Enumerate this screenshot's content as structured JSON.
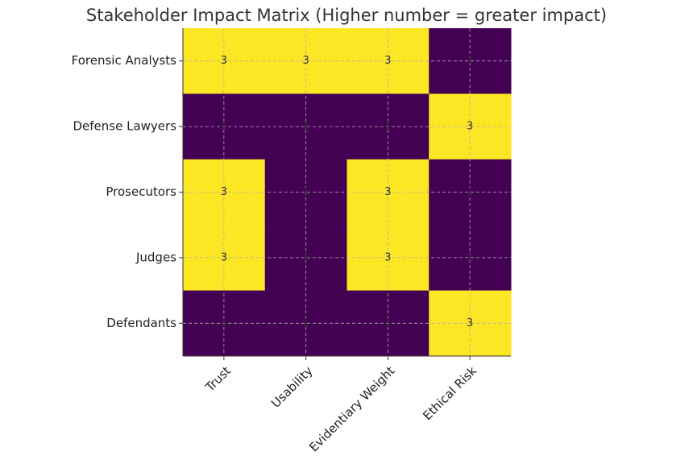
{
  "chart_data": {
    "type": "heatmap",
    "title": "Stakeholder Impact Matrix (Higher number = greater impact)",
    "x_categories": [
      "Trust",
      "Usability",
      "Evidentiary Weight",
      "Ethical Risk"
    ],
    "y_categories": [
      "Forensic Analysts",
      "Defense Lawyers",
      "Prosecutors",
      "Judges",
      "Defendants"
    ],
    "values": [
      [
        3,
        3,
        3,
        1
      ],
      [
        1,
        1,
        1,
        3
      ],
      [
        3,
        1,
        3,
        1
      ],
      [
        3,
        1,
        3,
        1
      ],
      [
        1,
        1,
        1,
        3
      ]
    ],
    "colors": [
      "#440154",
      "#fde725"
    ],
    "grid": true
  }
}
